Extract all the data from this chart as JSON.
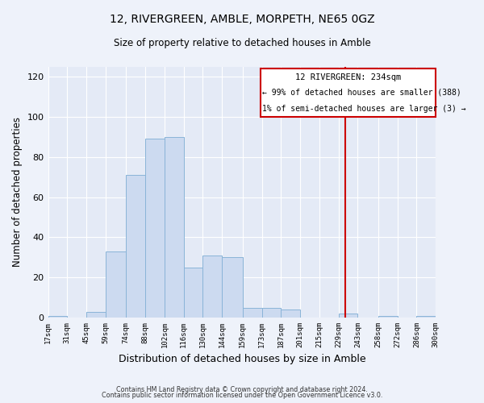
{
  "title": "12, RIVERGREEN, AMBLE, MORPETH, NE65 0GZ",
  "subtitle": "Size of property relative to detached houses in Amble",
  "xlabel": "Distribution of detached houses by size in Amble",
  "ylabel": "Number of detached properties",
  "footer_line1": "Contains HM Land Registry data © Crown copyright and database right 2024.",
  "footer_line2": "Contains public sector information licensed under the Open Government Licence v3.0.",
  "bin_edges": [
    17,
    31,
    45,
    59,
    74,
    88,
    102,
    116,
    130,
    144,
    159,
    173,
    187,
    201,
    215,
    229,
    243,
    258,
    272,
    286,
    300
  ],
  "bin_counts": [
    1,
    0,
    3,
    33,
    71,
    89,
    90,
    25,
    31,
    30,
    5,
    5,
    4,
    0,
    0,
    2,
    0,
    1,
    0,
    1
  ],
  "bar_color": "#ccdaf0",
  "bar_edge_color": "#8ab4d8",
  "property_line_x": 234,
  "property_line_color": "#cc0000",
  "annotation_title": "12 RIVERGREEN: 234sqm",
  "annotation_line1": "← 99% of detached houses are smaller (388)",
  "annotation_line2": "1% of semi-detached houses are larger (3) →",
  "annotation_box_color": "#cc0000",
  "ylim": [
    0,
    125
  ],
  "background_color": "#eef2fa",
  "plot_background": "#e4eaf6",
  "tick_labels": [
    "17sqm",
    "31sqm",
    "45sqm",
    "59sqm",
    "74sqm",
    "88sqm",
    "102sqm",
    "116sqm",
    "130sqm",
    "144sqm",
    "159sqm",
    "173sqm",
    "187sqm",
    "201sqm",
    "215sqm",
    "229sqm",
    "243sqm",
    "258sqm",
    "272sqm",
    "286sqm",
    "300sqm"
  ],
  "yticks": [
    0,
    20,
    40,
    60,
    80,
    100,
    120
  ]
}
